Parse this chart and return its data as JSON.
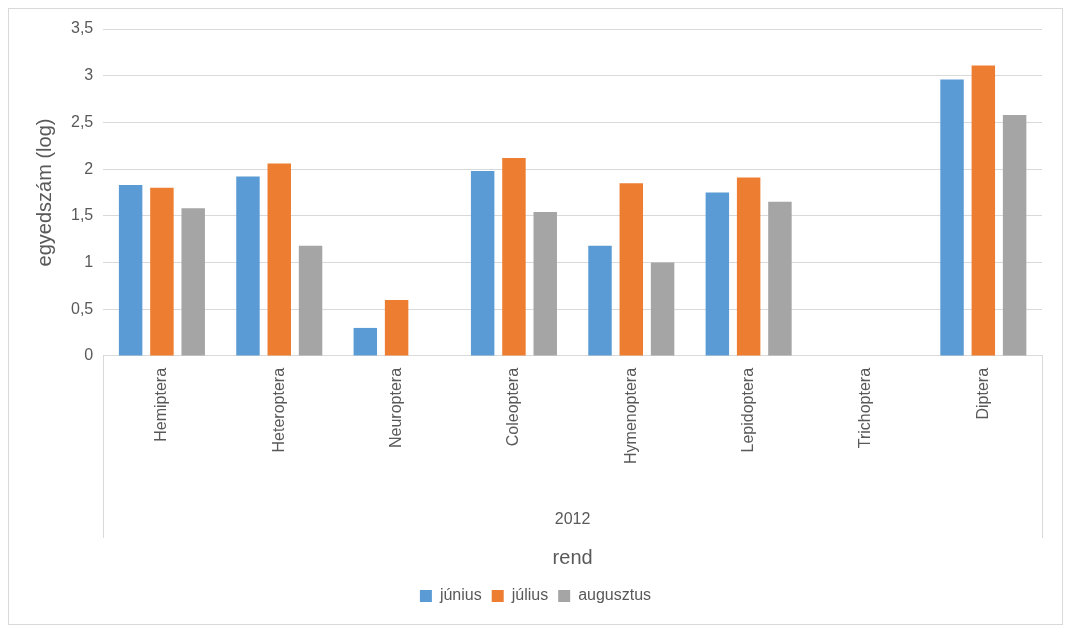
{
  "chart_data": {
    "type": "bar",
    "xlabel": "rend",
    "ylabel": "egyedszám (log)",
    "categories": [
      "Hemiptera",
      "Heteroptera",
      "Neuroptera",
      "Coleoptera",
      "Hymenoptera",
      "Lepidoptera",
      "Trichoptera",
      "Diptera"
    ],
    "series": [
      {
        "name": "június",
        "color": "#5b9bd5",
        "values": [
          1.83,
          1.92,
          0.3,
          1.98,
          1.18,
          1.75,
          0,
          2.96
        ]
      },
      {
        "name": "július",
        "color": "#ed7d31",
        "values": [
          1.8,
          2.06,
          0.6,
          2.12,
          1.85,
          1.91,
          0,
          3.11
        ]
      },
      {
        "name": "augusztus",
        "color": "#a5a5a5",
        "values": [
          1.58,
          1.18,
          0,
          1.54,
          1.0,
          1.65,
          0,
          2.58
        ]
      }
    ],
    "ylim": [
      0,
      3.5
    ],
    "yticks": [
      {
        "value": 0,
        "label": "0"
      },
      {
        "value": 0.5,
        "label": "0,5"
      },
      {
        "value": 1,
        "label": "1"
      },
      {
        "value": 1.5,
        "label": "1,5"
      },
      {
        "value": 2,
        "label": "2"
      },
      {
        "value": 2.5,
        "label": "2,5"
      },
      {
        "value": 3,
        "label": "3"
      },
      {
        "value": 3.5,
        "label": "3,5"
      }
    ],
    "annotations": [
      "2012"
    ],
    "grid": "y",
    "legend": "bottom"
  }
}
